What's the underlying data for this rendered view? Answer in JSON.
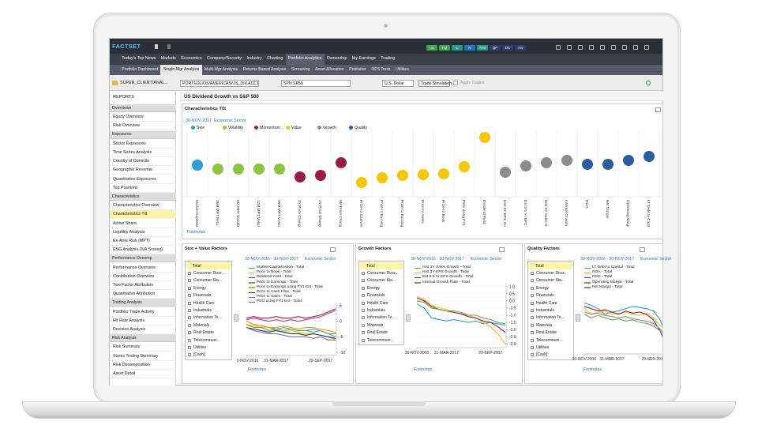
{
  "topbar": {
    "logo": "FACTSET",
    "buttons": [
      {
        "label": "LG",
        "color": "#3aa64a"
      },
      {
        "label": "FQ",
        "color": "#3aa64a"
      },
      {
        "label": "C",
        "color": "#1d9a8a"
      },
      {
        "label": "N",
        "color": "#1e73be"
      },
      {
        "label": "TES",
        "color": "#1d9a8a"
      },
      {
        "label": "QP",
        "color": "#2c3e75"
      },
      {
        "label": "DC",
        "color": "#2c3e75"
      },
      {
        "label": "AN",
        "color": "#2c3e75"
      }
    ]
  },
  "tabs": [
    "Today's Top News",
    "Markets",
    "Economics",
    "Company/Security",
    "Industry",
    "Charting",
    "Portfolio Analytics",
    "Ownership",
    "My Earnings",
    "Trading"
  ],
  "subtabs": [
    "Portfolio Dashboard",
    "Single-Mgr Analysis",
    "Multi-Mgr Analysis",
    "Returns Based Analysis",
    "Screening",
    "Asset Allocation",
    "Publisher",
    "OFS Tools",
    "Utilities"
  ],
  "controls": {
    "account": "SUPER_CLIENT!ANAL...",
    "portfolio": "PORTFOLIOS/AMERICAS/US_DIV.ACCT",
    "benchmark": "SPN:SP50",
    "currency": "U.S. Dollar",
    "trade_simulation": "Trade Simulation",
    "apply_trades": "Apply Trades"
  },
  "sidebar": {
    "title": "REPORTS",
    "sections": [
      {
        "header": "Overviews",
        "items": [
          "Equity Overview",
          "Risk Overview"
        ]
      },
      {
        "header": "Exposures",
        "items": [
          "Sector Exposures",
          "Time Series Analysis",
          "Country of Domicile",
          "Geographic Revenue",
          "Quantitative Exposures",
          "Top Positions"
        ]
      },
      {
        "header": "Characteristics",
        "items": [
          "Characteristics Overview",
          "Characteristics Tilt",
          "Active Share",
          "Liquidity Analysis",
          "Ex-Ante Risk (MPT)",
          "ESG Analysis (IVA Scores)"
        ]
      },
      {
        "header": "Performance Decomp",
        "items": [
          "Performance Overview",
          "Contribution Overview",
          "Two Factor Attribution",
          "Quantitative Attribution"
        ]
      },
      {
        "header": "Trading Analysis",
        "items": [
          "Portfolio Trade Activity",
          "Hit Rate Analysis",
          "Decision Analysis"
        ]
      },
      {
        "header": "Risk Analysis",
        "items": [
          "Risk Summary",
          "Stress Testing Summary",
          "Risk Decomposition",
          "Asset Detail"
        ]
      }
    ]
  },
  "report_title": "US Dividend Growth vs S&P 500",
  "tilt": {
    "title": "Characteristics Tilt",
    "date": "30-NOV-2017",
    "grouping": "Economic Sector",
    "footnotes": "Footnotes",
    "chart_data": {
      "type": "dot",
      "categories": [
        "Market Capitalization",
        "36M MPT Beta",
        "6M MPT Volatility",
        "12M MPT Volatility",
        "36M MPT Volatility",
        "3Y Price Change",
        "1Y Price Change",
        "6M Price Change",
        "Price to Cash Flow",
        "Price to Earnings using FY1 Est",
        "Price to Earnings",
        "Price to Sales",
        "Price to Book",
        "PEG using FY1 Est",
        "Dividend Yield",
        "Hist 3Y EPS Growth",
        "Est 3-5 Yr EPS Growth",
        "Hist 3Y Sales Growth",
        "Internal Growth Rate",
        "ROA",
        "Net Margin",
        "Operating Margin",
        "LT Debt to Capital"
      ],
      "series": [
        {
          "name": "Size",
          "color": "#2b9fd9",
          "values": [
            0,
            null,
            null,
            null,
            null,
            null,
            null,
            null,
            null,
            null,
            null,
            null,
            null,
            null,
            null,
            null,
            null,
            null,
            null,
            null,
            null,
            null,
            null
          ]
        },
        {
          "name": "Volatility",
          "color": "#8cc63f",
          "values": [
            null,
            -5,
            -5,
            -5,
            -5,
            null,
            null,
            null,
            null,
            null,
            null,
            null,
            null,
            null,
            null,
            null,
            null,
            null,
            null,
            null,
            null,
            null,
            null
          ]
        },
        {
          "name": "Momentum",
          "color": "#9b1b4b",
          "values": [
            null,
            null,
            null,
            null,
            null,
            -15,
            -13,
            3,
            null,
            null,
            null,
            null,
            null,
            null,
            null,
            null,
            null,
            null,
            null,
            null,
            null,
            null,
            null
          ]
        },
        {
          "name": "Value",
          "color": "#f7c600",
          "values": [
            null,
            null,
            null,
            null,
            null,
            null,
            null,
            null,
            -22,
            -16,
            -13,
            -12,
            -11,
            -2,
            35,
            null,
            null,
            null,
            null,
            null,
            null,
            null,
            null
          ]
        },
        {
          "name": "Growth",
          "color": "#8c8c8c",
          "values": [
            null,
            null,
            null,
            null,
            null,
            null,
            null,
            null,
            null,
            null,
            null,
            null,
            null,
            null,
            null,
            -9,
            -1,
            3,
            6,
            null,
            null,
            null,
            null
          ]
        },
        {
          "name": "Quality",
          "color": "#2a5d9f",
          "values": [
            null,
            null,
            null,
            null,
            null,
            null,
            null,
            null,
            null,
            null,
            null,
            null,
            null,
            null,
            null,
            null,
            null,
            null,
            null,
            1,
            1,
            6,
            11
          ]
        }
      ]
    }
  },
  "panels": [
    {
      "title": "Size + Value Factors",
      "date_range": "30-NOV-2016 - 30-NOV-2017",
      "grouping": "Economic Sector",
      "footnotes": "Footnotes",
      "sectors": [
        "Total",
        "Consumer Discr...",
        "Consumer Sta...",
        "Energy",
        "Financials",
        "Health Care",
        "Industrials",
        "Information Te...",
        "Materials",
        "Real Estate",
        "Telecommuni...",
        "Utilities",
        "[Cash]"
      ],
      "chart_data": {
        "type": "line",
        "categories": [
          "30-NOV-2016",
          null,
          null,
          null,
          "31-MAR-2017",
          null,
          null,
          null,
          null,
          null,
          "29-SEP-2017",
          null,
          null
        ],
        "ylim": [
          -11,
          6
        ],
        "yticks": [
          5,
          0,
          -5,
          -10
        ],
        "series": [
          {
            "name": "Market Capitalization - Total",
            "color": "#2b9fd9",
            "values": [
              0,
              -1,
              -1.5,
              -2,
              -2.5,
              -2,
              -2.5,
              -3,
              -3,
              -2.5,
              -3,
              -4,
              -5
            ]
          },
          {
            "name": "Price to Book - Total",
            "color": "#f7c600",
            "values": [
              -1,
              -1.5,
              -2,
              -2,
              -3,
              -3.5,
              -3,
              -3.5,
              -4,
              -4,
              -4.5,
              -5,
              -6
            ]
          },
          {
            "name": "Dividend Yield - Total",
            "color": "#9b1b4b",
            "values": [
              1,
              1.5,
              1,
              1,
              1.5,
              1,
              1,
              1.5,
              1,
              1.5,
              2,
              3,
              4
            ]
          },
          {
            "name": "Price to Earnings - Total",
            "color": "#6aa84f",
            "values": [
              -1,
              -2,
              -2,
              -3,
              -2.5,
              -3,
              -2.5,
              -3,
              -3,
              -3.5,
              -3,
              -4,
              -4
            ]
          },
          {
            "name": "Price to Earnings using FY1 Est - Total",
            "color": "#f39c12",
            "values": [
              0,
              -1,
              -1.5,
              -2,
              -2,
              -1.5,
              -2,
              -2.5,
              -2,
              -2,
              -2.5,
              -3,
              -3.5
            ]
          },
          {
            "name": "Price to Cash Flow - Total",
            "color": "#1b2f6e",
            "values": [
              -2,
              -2.5,
              -3,
              -3.5,
              -3,
              -3.5,
              -4,
              -4,
              -4.5,
              -4,
              -4.5,
              -5,
              -5.5
            ]
          },
          {
            "name": "Price to Sales - Total",
            "color": "#777777",
            "values": [
              -2,
              -3,
              -3.5,
              -4,
              -4,
              -4.5,
              -5,
              -5,
              -5,
              -5.5,
              -5,
              -6,
              -6
            ]
          },
          {
            "name": "PEG using FY1 Est - Total",
            "color": "#b0407a",
            "values": [
              0.5,
              1,
              0.5,
              0,
              0.5,
              0,
              0.5,
              0,
              0.5,
              1,
              1.5,
              2.5,
              3.5
            ]
          }
        ]
      }
    },
    {
      "title": "Growth Factors",
      "date_range": "30-NOV-2016 - 30-NOV-2017",
      "grouping": "Economic Sector",
      "footnotes": "Footnotes",
      "sectors": [
        "Total",
        "Consumer Discr...",
        "Consumer Sta...",
        "Energy",
        "Financials",
        "Health Care",
        "Industrials",
        "Information Te...",
        "Materials",
        "Real Estate",
        "Telecommuni..."
      ],
      "chart_data": {
        "type": "line",
        "categories": [
          "30-NOV-2016",
          null,
          null,
          null,
          "31-MAR-2017",
          null,
          null,
          null,
          null,
          null,
          "29-SEP-2017",
          null,
          null
        ],
        "ylim": [
          -3.25,
          1.25
        ],
        "yticks": [
          {
            "value": 1,
            "label": "1.0"
          },
          0.5,
          {
            "value": 0,
            "label": "0.0"
          },
          -0.5,
          {
            "value": -1,
            "label": "-1.0"
          },
          -1.5,
          {
            "value": -2,
            "label": "-2.0"
          },
          -2.5,
          {
            "value": -3,
            "label": "-3.0"
          }
        ],
        "series": [
          {
            "name": "Hist 3Y Sales Growth - Total",
            "color": "#2b9fd9",
            "values": [
              -0.2,
              -0.5,
              -1.2,
              -1.3,
              -1.4,
              -1.3,
              -1.4,
              -1.5,
              -1.4,
              -1.6,
              -1.5,
              -1.6,
              -1.7
            ]
          },
          {
            "name": "Hist 3Y EPS Growth - Total",
            "color": "#f7c600",
            "values": [
              0.3,
              0.1,
              -0.3,
              -0.5,
              -0.6,
              -0.8,
              -0.9,
              -1,
              -1.2,
              -1.5,
              -1.8,
              -2.3,
              -3
            ]
          },
          {
            "name": "Est 3-5 Yr EPS Growth - Total",
            "color": "#9b1b4b",
            "values": [
              0.2,
              0,
              -0.4,
              -0.6,
              -0.7,
              -0.8,
              -0.9,
              -1.1,
              -1.2,
              -1.4,
              -1.5,
              -1.8,
              -2.2
            ]
          },
          {
            "name": "Internal Growth Rate - Total",
            "color": "#6aa84f",
            "values": [
              0,
              -0.1,
              -0.5,
              -0.6,
              -0.7,
              -0.7,
              -0.8,
              -1,
              -1,
              -1.2,
              -1.3,
              -1.5,
              -1.6
            ]
          }
        ]
      }
    },
    {
      "title": "Quality Factors",
      "date_range": "30-NOV-2016 - 30-NOV-2017",
      "grouping": "Economic Sector",
      "footnotes": "Footnotes",
      "sectors": [
        "Total",
        "Consumer Discr...",
        "Consumer Sta...",
        "Energy",
        "Financials",
        "Health Care",
        "Industrials",
        "Information Te...",
        "Materials",
        "Real Estate",
        "Telecommuni...",
        "Utilities",
        "[Cash]"
      ],
      "chart_data": {
        "type": "line",
        "categories": [
          "30-NOV-2016",
          null,
          null,
          null,
          "31-MAR-2017",
          null,
          null,
          null,
          null,
          null,
          "29-SEP-2017",
          null,
          null
        ],
        "ylim": [
          -4,
          2
        ],
        "series": [
          {
            "name": "LT Debt to Capital - Total",
            "color": "#2b9fd9",
            "values": [
              0.5,
              0.3,
              0,
              -0.5,
              -0.3,
              -0.2,
              0,
              0.2,
              0.1,
              0,
              -0.2,
              -1,
              -2.5
            ]
          },
          {
            "name": "ROA - Total",
            "color": "#f7c600",
            "values": [
              0,
              -0.5,
              -0.3,
              -0.2,
              -0.5,
              -0.4,
              -0.3,
              -0.5,
              -0.6,
              -0.4,
              -0.8,
              -1.5,
              -2
            ]
          },
          {
            "name": "ROE - Total",
            "color": "#9b1b4b",
            "values": [
              0.2,
              0,
              -0.2,
              -0.1,
              -0.3,
              -0.5,
              -0.2,
              -0.4,
              -0.3,
              -0.5,
              -1,
              -2,
              -3.5
            ]
          },
          {
            "name": "Operating Margin - Total",
            "color": "#6aa84f",
            "values": [
              -0.5,
              -0.8,
              -0.6,
              -0.8,
              -1,
              -0.9,
              -1.1,
              -1,
              -1.2,
              -1.3,
              -1.5,
              -2,
              -3
            ]
          },
          {
            "name": "Net Margin - Total",
            "color": "#888888",
            "values": [
              -0.3,
              -0.5,
              -0.4,
              -0.6,
              -0.7,
              -0.8,
              -0.7,
              -0.9,
              -1,
              -1.1,
              -1.3,
              -1.8,
              -2.8
            ]
          }
        ]
      }
    }
  ]
}
